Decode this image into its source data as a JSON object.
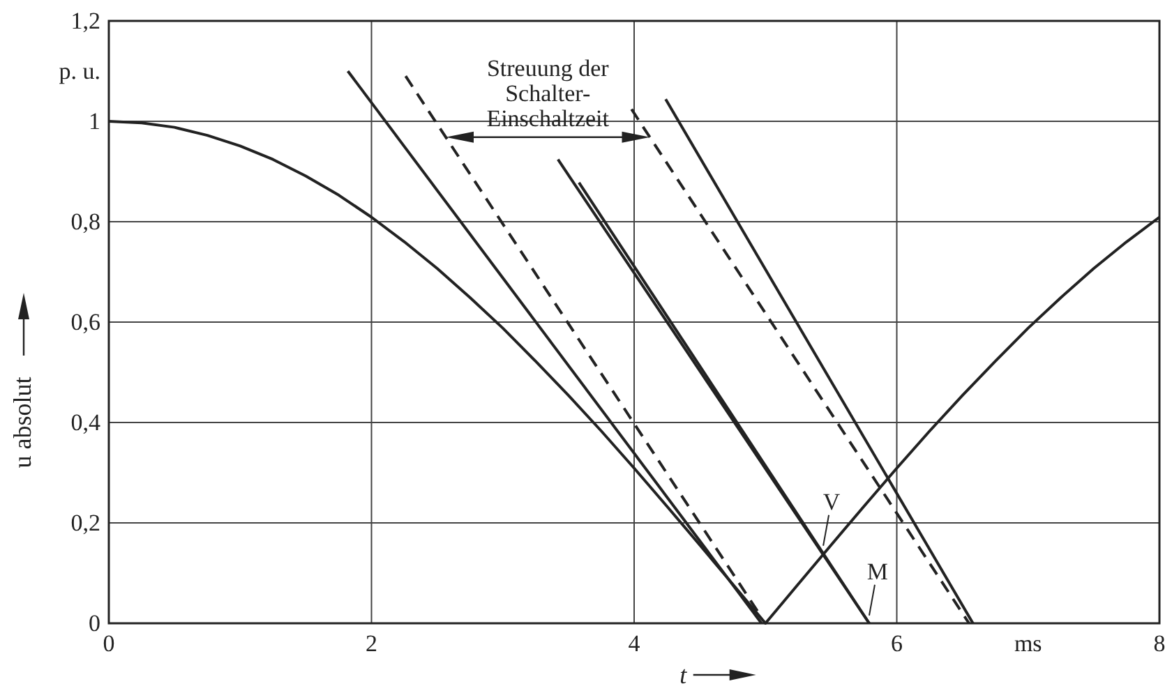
{
  "chart_data": {
    "type": "line",
    "xlabel": "t",
    "ylabel": "u absolut",
    "xlim": [
      0,
      8
    ],
    "ylim": [
      0,
      1.2
    ],
    "xticks": [
      0,
      2,
      4,
      6,
      8,
      {
        "value": 7,
        "label": "ms"
      }
    ],
    "yticks": [
      0,
      {
        "value": 0.2,
        "label": "0,2"
      },
      {
        "value": 0.4,
        "label": "0,4"
      },
      {
        "value": 0.6,
        "label": "0,6"
      },
      {
        "value": 0.8,
        "label": "0,8"
      },
      1,
      {
        "value": 1.2,
        "label": "1,2"
      },
      {
        "value": 1.1,
        "label": "p. u."
      }
    ],
    "grid": true,
    "marker": "none",
    "series": [
      {
        "color": "#222222",
        "line_style": "solid",
        "x": [
          0,
          0.25,
          0.5,
          0.75,
          1,
          1.25,
          1.5,
          1.75,
          2,
          2.25,
          2.5,
          2.75,
          3,
          3.25,
          3.5,
          3.75,
          4,
          4.25,
          4.5,
          4.75,
          5,
          5.25,
          5.5,
          5.75,
          6,
          6.25,
          6.5,
          6.75,
          7,
          7.25,
          7.5,
          7.75,
          8
        ],
        "values": [
          1,
          0.997,
          0.988,
          0.972,
          0.951,
          0.924,
          0.891,
          0.853,
          0.809,
          0.76,
          0.707,
          0.649,
          0.588,
          0.522,
          0.454,
          0.383,
          0.309,
          0.233,
          0.156,
          0.078,
          0,
          0.078,
          0.156,
          0.233,
          0.309,
          0.383,
          0.454,
          0.522,
          0.588,
          0.649,
          0.707,
          0.76,
          0.809
        ]
      },
      {
        "color": "#222222",
        "line_style": "solid",
        "x": [
          1.82,
          4.97
        ],
        "values": [
          1.1,
          0
        ]
      },
      {
        "color": "#222222",
        "line_style": "dashed",
        "x": [
          2.26,
          4.95
        ],
        "values": [
          1.09,
          0.02
        ]
      },
      {
        "color": "#222222",
        "line_style": "solid",
        "x": [
          3.42,
          5.79
        ],
        "values": [
          0.924,
          0
        ]
      },
      {
        "color": "#222222",
        "line_style": "solid",
        "x": [
          3.58,
          5.79
        ],
        "values": [
          0.878,
          0
        ]
      },
      {
        "color": "#222222",
        "line_style": "dashed",
        "x": [
          3.98,
          6.55
        ],
        "values": [
          1.024,
          0
        ]
      },
      {
        "color": "#222222",
        "line_style": "solid",
        "x": [
          4.24,
          6.58
        ],
        "values": [
          1.044,
          0
        ]
      }
    ],
    "annotations": [
      "Streuung der Schalter-Einschaltzeit",
      {
        "text": "V",
        "x": 5.44,
        "y": 0.149
      },
      {
        "text": "M",
        "x": 5.79,
        "y": 0.01
      }
    ]
  }
}
